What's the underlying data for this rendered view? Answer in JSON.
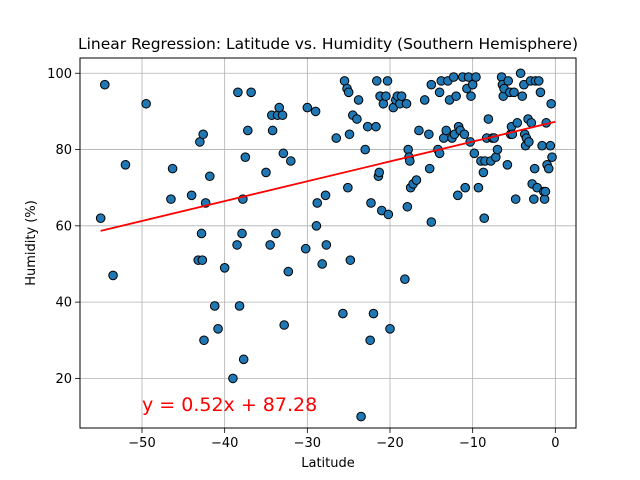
{
  "chart_data": {
    "type": "scatter",
    "title": "Linear Regression: Latitude vs. Humidity (Southern Hemisphere)",
    "xlabel": "Latitude",
    "ylabel": "Humidity (%)",
    "xlim": [
      -57.5,
      2.5
    ],
    "ylim": [
      7,
      104
    ],
    "xticks": [
      -50,
      -40,
      -30,
      -20,
      -10,
      0
    ],
    "yticks": [
      20,
      40,
      60,
      80,
      100
    ],
    "grid": true,
    "marker_color": "#1f77b4",
    "marker_edge": "#000000",
    "regression": {
      "slope": 0.52,
      "intercept": 87.28,
      "x_start": -55,
      "x_end": 0,
      "color": "#ff0000",
      "equation_label": "y = 0.52x + 87.28"
    },
    "points": [
      [
        -55,
        62
      ],
      [
        -54.5,
        97
      ],
      [
        -53.5,
        47
      ],
      [
        -52,
        76
      ],
      [
        -49.5,
        92
      ],
      [
        -46.5,
        67
      ],
      [
        -46.3,
        75
      ],
      [
        -44,
        68
      ],
      [
        -43.2,
        51
      ],
      [
        -43,
        82
      ],
      [
        -42.8,
        58
      ],
      [
        -42.7,
        51
      ],
      [
        -42.6,
        84
      ],
      [
        -42.5,
        30
      ],
      [
        -42.3,
        66
      ],
      [
        -41.8,
        73
      ],
      [
        -41.2,
        39
      ],
      [
        -40.8,
        33
      ],
      [
        -40,
        49
      ],
      [
        -39,
        20
      ],
      [
        -38.5,
        55
      ],
      [
        -38.4,
        95
      ],
      [
        -38.2,
        39
      ],
      [
        -37.9,
        58
      ],
      [
        -37.8,
        67
      ],
      [
        -37.7,
        25
      ],
      [
        -37.5,
        78
      ],
      [
        -37.2,
        85
      ],
      [
        -36.8,
        95
      ],
      [
        -35,
        74
      ],
      [
        -34.5,
        55
      ],
      [
        -34.3,
        89
      ],
      [
        -34.2,
        85
      ],
      [
        -33.8,
        58
      ],
      [
        -33.6,
        89
      ],
      [
        -33.4,
        91
      ],
      [
        -33,
        89
      ],
      [
        -32.9,
        79
      ],
      [
        -32.8,
        34
      ],
      [
        -32.3,
        48
      ],
      [
        -32,
        77
      ],
      [
        -30.2,
        54
      ],
      [
        -30,
        91
      ],
      [
        -29,
        90
      ],
      [
        -28.9,
        60
      ],
      [
        -28.8,
        66
      ],
      [
        -28.2,
        50
      ],
      [
        -27.8,
        68
      ],
      [
        -27.7,
        55
      ],
      [
        -26.5,
        83
      ],
      [
        -25.7,
        37
      ],
      [
        -25.5,
        98
      ],
      [
        -25.2,
        96
      ],
      [
        -25.1,
        70
      ],
      [
        -25,
        95
      ],
      [
        -24.9,
        84
      ],
      [
        -24.8,
        51
      ],
      [
        -24.5,
        89
      ],
      [
        -24,
        88
      ],
      [
        -23.8,
        93
      ],
      [
        -23.5,
        10
      ],
      [
        -23,
        80
      ],
      [
        -22.7,
        86
      ],
      [
        -22.4,
        30
      ],
      [
        -22.3,
        66
      ],
      [
        -22,
        37
      ],
      [
        -21.7,
        86
      ],
      [
        -21.6,
        98
      ],
      [
        -21.4,
        73
      ],
      [
        -21.3,
        74
      ],
      [
        -21.2,
        94
      ],
      [
        -21,
        64
      ],
      [
        -20.8,
        92
      ],
      [
        -20.5,
        94
      ],
      [
        -20.3,
        98
      ],
      [
        -20.2,
        63
      ],
      [
        -20,
        33
      ],
      [
        -19.6,
        91
      ],
      [
        -19.3,
        93
      ],
      [
        -19.1,
        94
      ],
      [
        -18.8,
        92
      ],
      [
        -18.6,
        94
      ],
      [
        -18.2,
        46
      ],
      [
        -18,
        92
      ],
      [
        -17.9,
        65
      ],
      [
        -17.8,
        80
      ],
      [
        -17.7,
        78
      ],
      [
        -17.6,
        77
      ],
      [
        -17.5,
        70
      ],
      [
        -17.2,
        71
      ],
      [
        -16.8,
        72
      ],
      [
        -16.5,
        85
      ],
      [
        -15.8,
        93
      ],
      [
        -15.3,
        84
      ],
      [
        -15.2,
        75
      ],
      [
        -15,
        61
      ],
      [
        -15,
        97
      ],
      [
        -14.2,
        80
      ],
      [
        -14,
        95
      ],
      [
        -14,
        79
      ],
      [
        -13.8,
        98
      ],
      [
        -13.5,
        83
      ],
      [
        -13.2,
        85
      ],
      [
        -13,
        98
      ],
      [
        -12.8,
        93
      ],
      [
        -12.5,
        83
      ],
      [
        -12.3,
        99
      ],
      [
        -12.2,
        84
      ],
      [
        -12,
        94
      ],
      [
        -11.8,
        68
      ],
      [
        -11.7,
        86
      ],
      [
        -11.5,
        85
      ],
      [
        -11.2,
        99
      ],
      [
        -11,
        84
      ],
      [
        -10.9,
        70
      ],
      [
        -10.7,
        96
      ],
      [
        -10.5,
        99
      ],
      [
        -10.3,
        82
      ],
      [
        -10.2,
        94
      ],
      [
        -10,
        97
      ],
      [
        -9.8,
        79
      ],
      [
        -9.6,
        99
      ],
      [
        -9.3,
        70
      ],
      [
        -9,
        77
      ],
      [
        -8.7,
        74
      ],
      [
        -8.6,
        62
      ],
      [
        -8.5,
        77
      ],
      [
        -8.3,
        83
      ],
      [
        -8.1,
        88
      ],
      [
        -7.8,
        77
      ],
      [
        -7.6,
        83
      ],
      [
        -7.4,
        83
      ],
      [
        -7.2,
        78
      ],
      [
        -7,
        80
      ],
      [
        -6.5,
        99
      ],
      [
        -6.4,
        97
      ],
      [
        -6.3,
        94
      ],
      [
        -6.2,
        96
      ],
      [
        -5.8,
        76
      ],
      [
        -5.7,
        98
      ],
      [
        -5.5,
        95
      ],
      [
        -5.4,
        84
      ],
      [
        -5.3,
        86
      ],
      [
        -5.2,
        84
      ],
      [
        -5,
        95
      ],
      [
        -4.8,
        67
      ],
      [
        -4.6,
        87
      ],
      [
        -4.2,
        100
      ],
      [
        -4,
        94
      ],
      [
        -3.8,
        97
      ],
      [
        -3.7,
        84
      ],
      [
        -3.6,
        81
      ],
      [
        -3.5,
        83
      ],
      [
        -3.3,
        88
      ],
      [
        -3.2,
        82
      ],
      [
        -3,
        98
      ],
      [
        -2.9,
        87
      ],
      [
        -2.8,
        71
      ],
      [
        -2.6,
        67
      ],
      [
        -2.5,
        75
      ],
      [
        -2.4,
        98
      ],
      [
        -2.2,
        70
      ],
      [
        -2,
        98
      ],
      [
        -1.8,
        95
      ],
      [
        -1.6,
        81
      ],
      [
        -1.4,
        69
      ],
      [
        -1.3,
        67
      ],
      [
        -1.2,
        69
      ],
      [
        -1.1,
        87
      ],
      [
        -1,
        76
      ],
      [
        -0.8,
        75
      ],
      [
        -0.6,
        81
      ],
      [
        -0.5,
        92
      ],
      [
        -0.4,
        78
      ]
    ]
  }
}
